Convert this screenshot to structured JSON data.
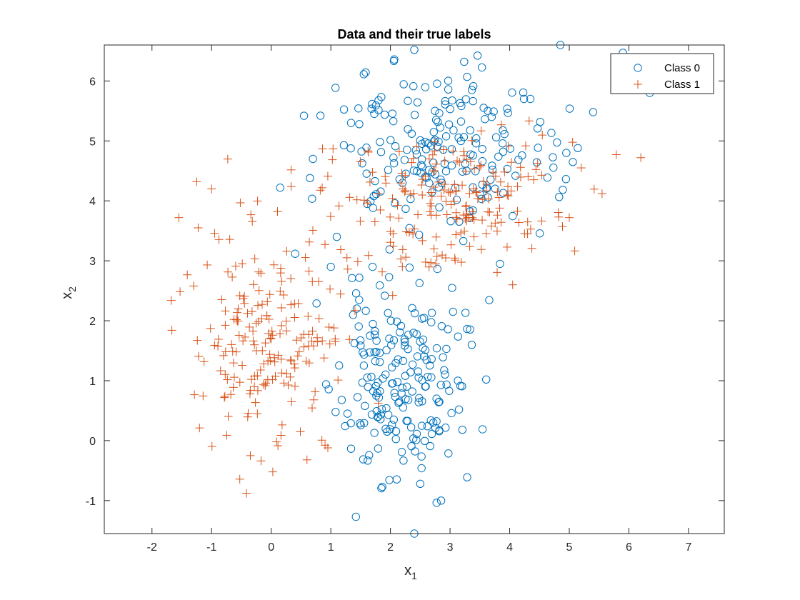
{
  "chart_data": {
    "type": "scatter",
    "title": "Data and their true labels",
    "xlabel": {
      "base": "x",
      "sub": "1"
    },
    "ylabel": {
      "base": "x",
      "sub": "2"
    },
    "xlim": [
      -2.8,
      7.6
    ],
    "ylim": [
      -1.55,
      6.6
    ],
    "xticks": [
      -2,
      -1,
      0,
      1,
      2,
      3,
      4,
      5,
      6,
      7
    ],
    "yticks": [
      -1,
      0,
      1,
      2,
      3,
      4,
      5,
      6
    ],
    "grid": false,
    "legend_position": "top-right",
    "series": [
      {
        "name": "Class 0",
        "marker": "circle",
        "color": "#0072BD",
        "clusters": [
          {
            "n": 200,
            "mean": [
              2.15,
              0.95
            ],
            "sd": [
              0.52,
              0.78
            ],
            "seed": 11
          },
          {
            "n": 200,
            "mean": [
              2.85,
              4.8
            ],
            "sd": [
              0.95,
              0.75
            ],
            "seed": 23
          }
        ],
        "points": [
          [
            2.4,
            6.52
          ],
          [
            2.4,
            -1.55
          ],
          [
            2.85,
            -1.0
          ],
          [
            4.85,
            6.6
          ],
          [
            5.9,
            6.47
          ],
          [
            6.35,
            5.8
          ],
          [
            0.55,
            5.42
          ],
          [
            0.15,
            4.22
          ],
          [
            0.65,
            4.38
          ],
          [
            0.7,
            4.7
          ],
          [
            1.0,
            2.9
          ],
          [
            1.1,
            3.4
          ],
          [
            3.05,
            2.15
          ],
          [
            3.15,
            0.52
          ],
          [
            2.5,
            -0.72
          ],
          [
            4.95,
            4.8
          ],
          [
            5.4,
            5.48
          ],
          [
            1.7,
            2.9
          ]
        ]
      },
      {
        "name": "Class 1",
        "marker": "plus",
        "color": "#D95319",
        "clusters": [
          {
            "n": 200,
            "mean": [
              0.0,
              1.75
            ],
            "sd": [
              0.62,
              0.95
            ],
            "seed": 37
          },
          {
            "n": 200,
            "mean": [
              2.9,
              4.0
            ],
            "sd": [
              0.95,
              0.55
            ],
            "seed": 53
          }
        ],
        "points": [
          [
            -1.55,
            3.72
          ],
          [
            -1.3,
            2.58
          ],
          [
            -1.25,
            4.32
          ],
          [
            -1.0,
            4.2
          ],
          [
            -0.35,
            -0.25
          ],
          [
            0.6,
            -0.32
          ],
          [
            0.95,
            -0.12
          ],
          [
            6.2,
            4.72
          ],
          [
            5.55,
            4.12
          ],
          [
            5.0,
            3.72
          ],
          [
            4.05,
            2.6
          ],
          [
            4.3,
            3.45
          ],
          [
            5.2,
            4.55
          ],
          [
            2.2,
            2.9
          ]
        ]
      }
    ]
  }
}
